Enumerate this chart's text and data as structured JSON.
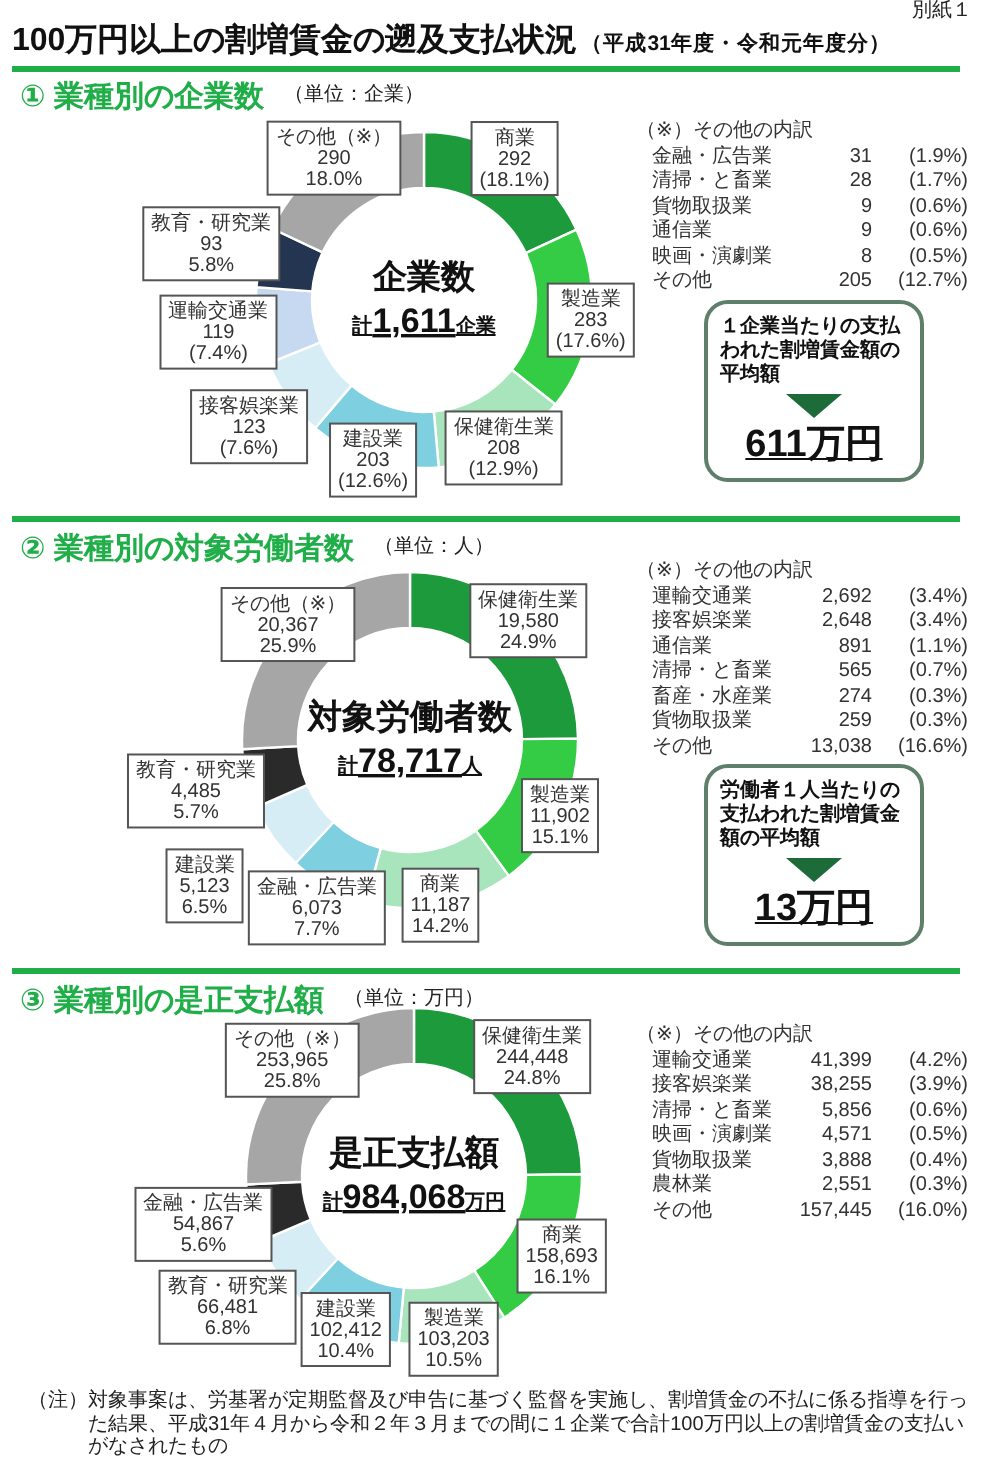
{
  "chart_data": [
    {
      "type": "other",
      "title": "100万円以上の割増賃金の遡及支払状況",
      "subtitle": "（平成31年度・令和元年度分）",
      "annotations": [
        "別紙１",
        "（注）対象事案は、労基署が定期監督及び申告に基づく監督を実施し、割増賃金の不払に係る指導を行った結果、平成31年４月から令和２年３月までの間に１企業で合計100万円以上の割増賃金の支払いがなされたもの"
      ]
    },
    {
      "type": "donut",
      "title": "① 業種別の企業数",
      "subtitle": "（単位：企業）",
      "categories": [
        "商業",
        "製造業",
        "保健衛生業",
        "建設業",
        "接客娯楽業",
        "運輸交通業",
        "教育・研究業",
        "その他（※）"
      ],
      "values": [
        292,
        283,
        208,
        203,
        123,
        119,
        93,
        290
      ],
      "colors": [
        "#1d9a3c",
        "#33cc44",
        "#a8e4bc",
        "#7ecfe0",
        "#d6edf6",
        "#c6d9f0",
        "#243552",
        "#a6a6a6"
      ],
      "value_labels": [
        "292\n(18.1%)",
        "283\n(17.6%)",
        "208\n(12.9%)",
        "203\n(12.6%)",
        "123\n(7.6%)",
        "119\n(7.4%)",
        "93\n5.8%",
        "290\n18.0%"
      ],
      "annotations": [
        "企業数",
        "計1,611企業",
        "１企業当たりの支払われた割増賃金額の平均額",
        "611万円"
      ]
    },
    {
      "type": "other",
      "title": "（※）その他の内訳",
      "annotations": [
        "金融・広告業\t31\t(1.9%)",
        "清掃・と畜業\t28\t(1.7%)",
        "貨物取扱業\t9\t(0.6%)",
        "通信業\t9\t(0.6%)",
        "映画・演劇業\t8\t(0.5%)",
        "その他\t205\t(12.7%)"
      ]
    },
    {
      "type": "donut",
      "title": "② 業種別の対象労働者数",
      "subtitle": "（単位：人）",
      "categories": [
        "保健衛生業",
        "製造業",
        "商業",
        "金融・広告業",
        "建設業",
        "教育・研究業",
        "その他（※）"
      ],
      "values": [
        19580,
        11902,
        11187,
        6073,
        5123,
        4485,
        20367
      ],
      "colors": [
        "#1d9a3c",
        "#33cc44",
        "#a8e4bc",
        "#7ecfe0",
        "#d6edf6",
        "#2a2a2a",
        "#a6a6a6"
      ],
      "value_labels": [
        "19,580\n24.9%",
        "11,902\n15.1%",
        "11,187\n14.2%",
        "6,073\n7.7%",
        "5,123\n6.5%",
        "4,485\n5.7%",
        "20,367\n25.9%"
      ],
      "annotations": [
        "対象労働者数",
        "計78,717人",
        "労働者１人当たりの支払われた割増賃金額の平均額",
        "13万円"
      ]
    },
    {
      "type": "other",
      "title": "（※）その他の内訳",
      "annotations": [
        "運輸交通業\t2,692\t(3.4%)",
        "接客娯楽業\t2,648\t(3.4%)",
        "通信業\t891\t(1.1%)",
        "清掃・と畜業\t565\t(0.7%)",
        "畜産・水産業\t274\t(0.3%)",
        "貨物取扱業\t259\t(0.3%)",
        "その他\t13,038\t(16.6%)"
      ]
    },
    {
      "type": "donut",
      "title": "③ 業種別の是正支払額",
      "subtitle": "（単位：万円）",
      "categories": [
        "保健衛生業",
        "商業",
        "製造業",
        "建設業",
        "教育・研究業",
        "金融・広告業",
        "その他（※）"
      ],
      "values": [
        244448,
        158693,
        103203,
        102412,
        66481,
        54867,
        253965
      ],
      "colors": [
        "#1d9a3c",
        "#33cc44",
        "#a8e4bc",
        "#7ecfe0",
        "#d6edf6",
        "#2a2a2a",
        "#a6a6a6"
      ],
      "value_labels": [
        "244,448\n24.8%",
        "158,693\n16.1%",
        "103,203\n10.5%",
        "102,412\n10.4%",
        "66,481\n6.8%",
        "54,867\n5.6%",
        "253,965\n25.8%"
      ],
      "annotations": [
        "是正支払額",
        "計984,068万円"
      ]
    },
    {
      "type": "other",
      "title": "（※）その他の内訳",
      "annotations": [
        "運輸交通業\t41,399\t(4.2%)",
        "接客娯楽業\t38,255\t(3.9%)",
        "清掃・と畜業\t5,856\t(0.6%)",
        "映画・演劇業\t4,571\t(0.5%)",
        "貨物取扱業\t3,888\t(0.4%)",
        "農林業\t2,551\t(0.3%)",
        "その他\t157,445\t(16.0%)"
      ]
    }
  ]
}
